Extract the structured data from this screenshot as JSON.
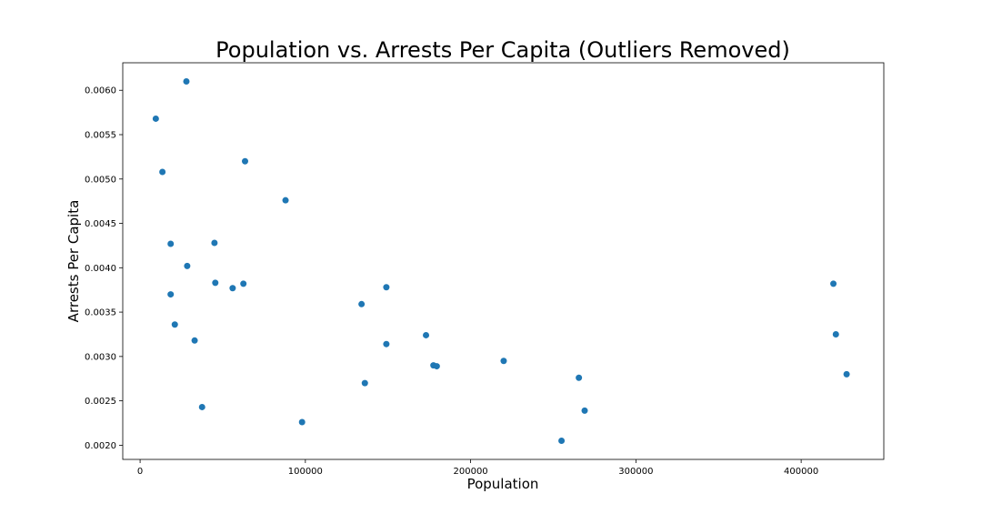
{
  "chart_data": {
    "type": "scatter",
    "title": "Population vs. Arrests Per Capita (Outliers Removed)",
    "xlabel": "Population",
    "ylabel": "Arrests Per Capita",
    "xlim": [
      -10500,
      450000
    ],
    "ylim": [
      0.00184,
      0.00631
    ],
    "xticks": [
      0,
      100000,
      200000,
      300000,
      400000
    ],
    "xtick_labels": [
      "0",
      "100000",
      "200000",
      "300000",
      "400000"
    ],
    "yticks": [
      0.002,
      0.0025,
      0.003,
      0.0035,
      0.004,
      0.0045,
      0.005,
      0.0055,
      0.006
    ],
    "ytick_labels": [
      "0.0020",
      "0.0025",
      "0.0030",
      "0.0035",
      "0.0040",
      "0.0045",
      "0.0050",
      "0.0055",
      "0.0060"
    ],
    "grid": false,
    "marker_color": "#1f77b4",
    "points": [
      {
        "x": 28000,
        "y": 0.0061
      },
      {
        "x": 9500,
        "y": 0.00568
      },
      {
        "x": 13500,
        "y": 0.00508
      },
      {
        "x": 63500,
        "y": 0.0052
      },
      {
        "x": 88000,
        "y": 0.00476
      },
      {
        "x": 18500,
        "y": 0.00427
      },
      {
        "x": 45000,
        "y": 0.00428
      },
      {
        "x": 28500,
        "y": 0.00402
      },
      {
        "x": 45500,
        "y": 0.00383
      },
      {
        "x": 56000,
        "y": 0.00377
      },
      {
        "x": 62500,
        "y": 0.00382
      },
      {
        "x": 18500,
        "y": 0.0037
      },
      {
        "x": 21000,
        "y": 0.00336
      },
      {
        "x": 33000,
        "y": 0.00318
      },
      {
        "x": 37500,
        "y": 0.00243
      },
      {
        "x": 98000,
        "y": 0.00226
      },
      {
        "x": 134000,
        "y": 0.00359
      },
      {
        "x": 149000,
        "y": 0.00378
      },
      {
        "x": 136000,
        "y": 0.0027
      },
      {
        "x": 149000,
        "y": 0.00314
      },
      {
        "x": 173000,
        "y": 0.00324
      },
      {
        "x": 177500,
        "y": 0.0029
      },
      {
        "x": 179500,
        "y": 0.00289
      },
      {
        "x": 220000,
        "y": 0.00295
      },
      {
        "x": 255000,
        "y": 0.00205
      },
      {
        "x": 265500,
        "y": 0.00276
      },
      {
        "x": 269000,
        "y": 0.00239
      },
      {
        "x": 419500,
        "y": 0.00382
      },
      {
        "x": 421000,
        "y": 0.00325
      },
      {
        "x": 427500,
        "y": 0.0028
      }
    ]
  }
}
